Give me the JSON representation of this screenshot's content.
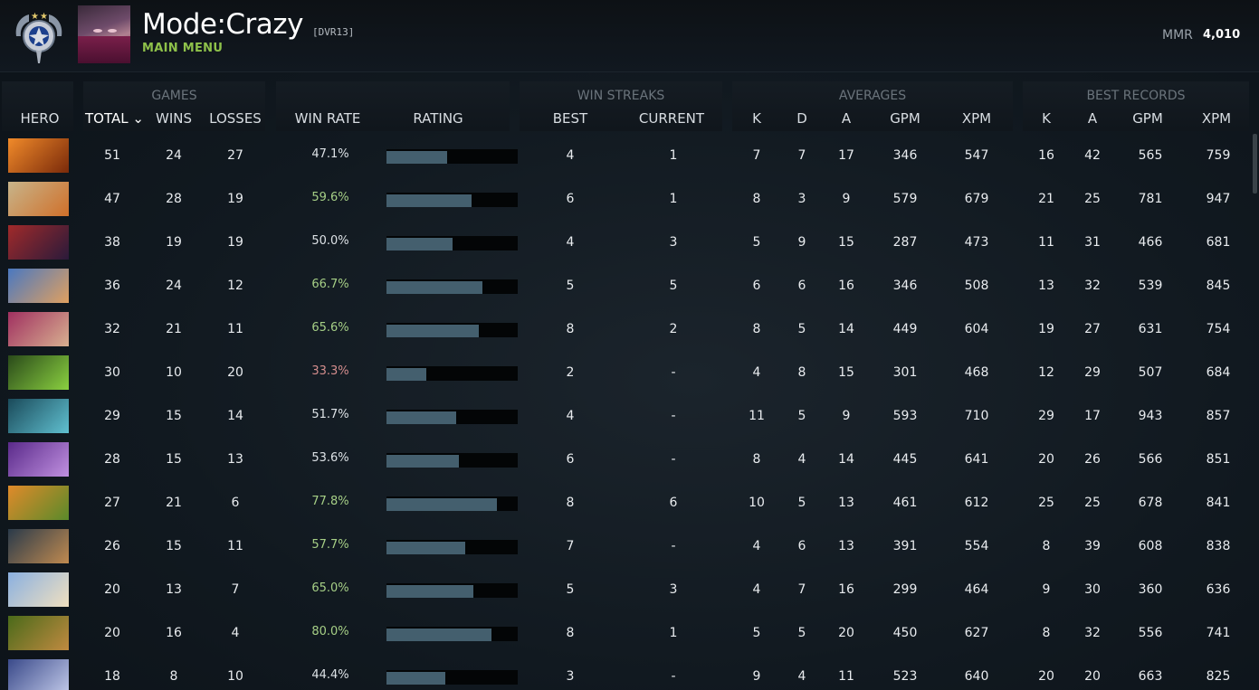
{
  "header": {
    "mode_title": "Mode:Crazy",
    "mode_tag": "[DVR13]",
    "main_menu": "MAIN MENU",
    "mmr_label": "MMR",
    "mmr_value": "4,010"
  },
  "groups": {
    "games": "GAMES",
    "win_streaks": "WIN STREAKS",
    "averages": "AVERAGES",
    "best_records": "BEST RECORDS"
  },
  "columns": {
    "hero": "HERO",
    "total": "TOTAL ⌄",
    "wins": "WINS",
    "losses": "LOSSES",
    "win_rate": "WIN RATE",
    "rating": "RATING",
    "best": "BEST",
    "current": "CURRENT",
    "avg_k": "K",
    "avg_d": "D",
    "avg_a": "A",
    "avg_gpm": "GPM",
    "avg_xpm": "XPM",
    "best_k": "K",
    "best_a": "A",
    "best_gpm": "GPM",
    "best_xpm": "XPM"
  },
  "colors": {
    "win_rate_good": "#a6cf86",
    "win_rate_bad": "#d48d8d",
    "rating_bar": "#445f6e",
    "main_menu": "#8ec14a"
  },
  "rows": [
    {
      "hero_icon": "hero-portrait-1",
      "total": "51",
      "wins": "24",
      "losses": "27",
      "win_rate": "47.1%",
      "rating": 0.46,
      "best": "4",
      "current": "1",
      "k": "7",
      "d": "7",
      "a": "17",
      "gpm": "346",
      "xpm": "547",
      "bk": "16",
      "ba": "42",
      "bgpm": "565",
      "bxpm": "759"
    },
    {
      "hero_icon": "hero-portrait-2",
      "total": "47",
      "wins": "28",
      "losses": "19",
      "win_rate": "59.6%",
      "rating": 0.65,
      "best": "6",
      "current": "1",
      "k": "8",
      "d": "3",
      "a": "9",
      "gpm": "579",
      "xpm": "679",
      "bk": "21",
      "ba": "25",
      "bgpm": "781",
      "bxpm": "947"
    },
    {
      "hero_icon": "hero-portrait-3",
      "total": "38",
      "wins": "19",
      "losses": "19",
      "win_rate": "50.0%",
      "rating": 0.5,
      "best": "4",
      "current": "3",
      "k": "5",
      "d": "9",
      "a": "15",
      "gpm": "287",
      "xpm": "473",
      "bk": "11",
      "ba": "31",
      "bgpm": "466",
      "bxpm": "681"
    },
    {
      "hero_icon": "hero-portrait-4",
      "total": "36",
      "wins": "24",
      "losses": "12",
      "win_rate": "66.7%",
      "rating": 0.73,
      "best": "5",
      "current": "5",
      "k": "6",
      "d": "6",
      "a": "16",
      "gpm": "346",
      "xpm": "508",
      "bk": "13",
      "ba": "32",
      "bgpm": "539",
      "bxpm": "845"
    },
    {
      "hero_icon": "hero-portrait-5",
      "total": "32",
      "wins": "21",
      "losses": "11",
      "win_rate": "65.6%",
      "rating": 0.7,
      "best": "8",
      "current": "2",
      "k": "8",
      "d": "5",
      "a": "14",
      "gpm": "449",
      "xpm": "604",
      "bk": "19",
      "ba": "27",
      "bgpm": "631",
      "bxpm": "754"
    },
    {
      "hero_icon": "hero-portrait-6",
      "total": "30",
      "wins": "10",
      "losses": "20",
      "win_rate": "33.3%",
      "rating": 0.3,
      "best": "2",
      "current": "-",
      "k": "4",
      "d": "8",
      "a": "15",
      "gpm": "301",
      "xpm": "468",
      "bk": "12",
      "ba": "29",
      "bgpm": "507",
      "bxpm": "684"
    },
    {
      "hero_icon": "hero-portrait-7",
      "total": "29",
      "wins": "15",
      "losses": "14",
      "win_rate": "51.7%",
      "rating": 0.53,
      "best": "4",
      "current": "-",
      "k": "11",
      "d": "5",
      "a": "9",
      "gpm": "593",
      "xpm": "710",
      "bk": "29",
      "ba": "17",
      "bgpm": "943",
      "bxpm": "857"
    },
    {
      "hero_icon": "hero-portrait-8",
      "total": "28",
      "wins": "15",
      "losses": "13",
      "win_rate": "53.6%",
      "rating": 0.55,
      "best": "6",
      "current": "-",
      "k": "8",
      "d": "4",
      "a": "14",
      "gpm": "445",
      "xpm": "641",
      "bk": "20",
      "ba": "26",
      "bgpm": "566",
      "bxpm": "851"
    },
    {
      "hero_icon": "hero-portrait-9",
      "total": "27",
      "wins": "21",
      "losses": "6",
      "win_rate": "77.8%",
      "rating": 0.84,
      "best": "8",
      "current": "6",
      "k": "10",
      "d": "5",
      "a": "13",
      "gpm": "461",
      "xpm": "612",
      "bk": "25",
      "ba": "25",
      "bgpm": "678",
      "bxpm": "841"
    },
    {
      "hero_icon": "hero-portrait-10",
      "total": "26",
      "wins": "15",
      "losses": "11",
      "win_rate": "57.7%",
      "rating": 0.6,
      "best": "7",
      "current": "-",
      "k": "4",
      "d": "6",
      "a": "13",
      "gpm": "391",
      "xpm": "554",
      "bk": "8",
      "ba": "39",
      "bgpm": "608",
      "bxpm": "838"
    },
    {
      "hero_icon": "hero-portrait-11",
      "total": "20",
      "wins": "13",
      "losses": "7",
      "win_rate": "65.0%",
      "rating": 0.66,
      "best": "5",
      "current": "3",
      "k": "4",
      "d": "7",
      "a": "16",
      "gpm": "299",
      "xpm": "464",
      "bk": "9",
      "ba": "30",
      "bgpm": "360",
      "bxpm": "636"
    },
    {
      "hero_icon": "hero-portrait-12",
      "total": "20",
      "wins": "16",
      "losses": "4",
      "win_rate": "80.0%",
      "rating": 0.8,
      "best": "8",
      "current": "1",
      "k": "5",
      "d": "5",
      "a": "20",
      "gpm": "450",
      "xpm": "627",
      "bk": "8",
      "ba": "32",
      "bgpm": "556",
      "bxpm": "741"
    },
    {
      "hero_icon": "hero-portrait-13",
      "total": "18",
      "wins": "8",
      "losses": "10",
      "win_rate": "44.4%",
      "rating": 0.45,
      "best": "3",
      "current": "-",
      "k": "9",
      "d": "4",
      "a": "11",
      "gpm": "523",
      "xpm": "640",
      "bk": "20",
      "ba": "20",
      "bgpm": "663",
      "bxpm": "825"
    }
  ]
}
